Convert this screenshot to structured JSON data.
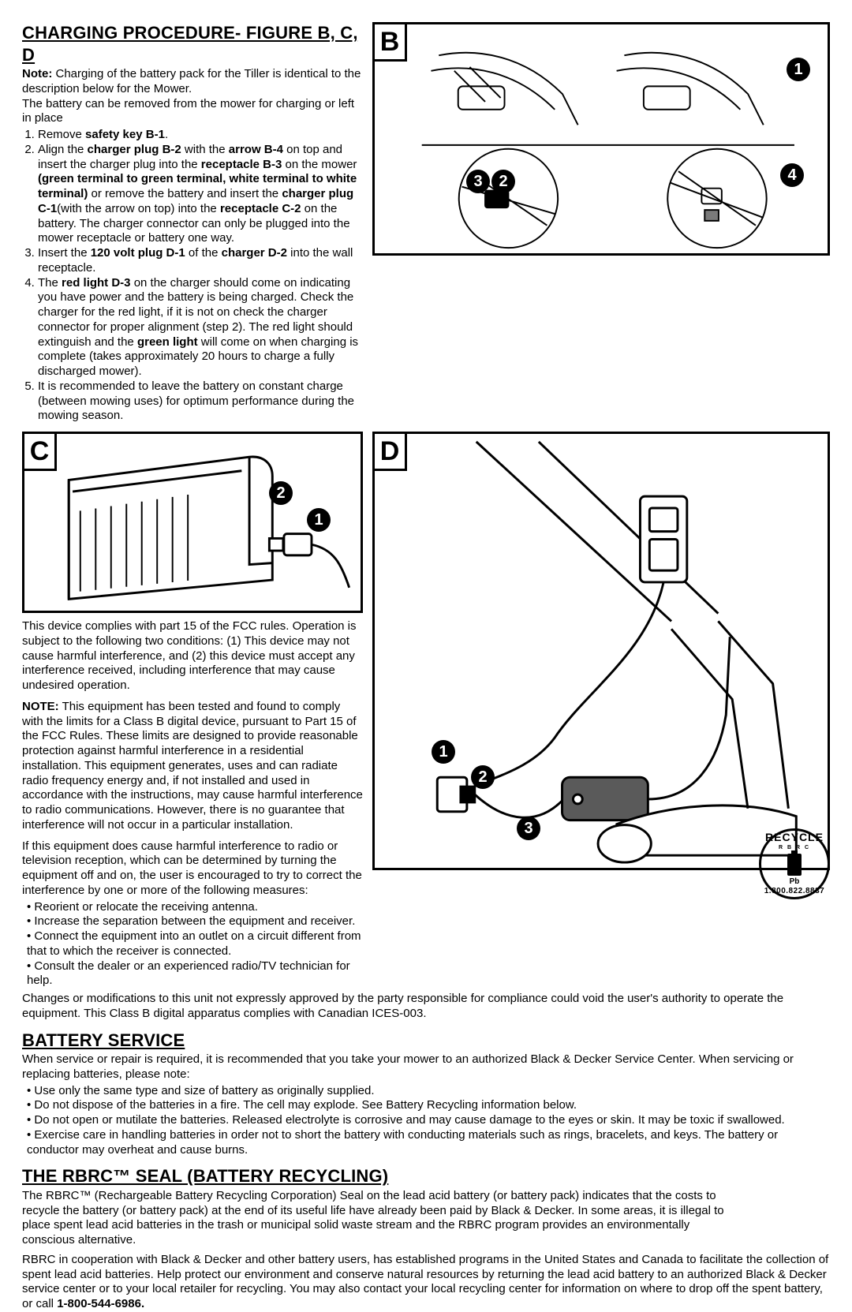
{
  "charging": {
    "title": "CHARGING PROCEDURE- FIGURE B, C, D",
    "note_lead": "Note:",
    "note": " Charging of the battery pack for the Tiller is identical to the description below for the Mower.",
    "intro": "The battery can be removed from the mower for charging or left in place",
    "steps_html": [
      "Remove <b>safety key B-1</b>.",
      "Align the <b>charger plug B-2</b> with the <b>arrow B-4</b> on top and insert the charger plug into the <b>receptacle B-3</b> on the mower <b>(green terminal to green terminal, white terminal to white terminal)</b> or remove the battery and insert the <b>charger plug C-1</b>(with the arrow on top) into the <b>receptacle C-2</b> on the battery. The charger connector can only be plugged into the mower receptacle or battery one way.",
      "Insert the <b>120 volt plug D-1</b> of the <b>charger D-2</b> into the wall receptacle.",
      "The <b>red light D-3</b> on the charger should come on indicating you have power and the battery is being charged. Check the charger for the red light, if it is not on check the charger connector for proper alignment (step 2). The red light should extinguish and the <b>green light</b> will come on when charging is complete (takes approximately 20 hours to charge a fully discharged mower).",
      "It is recommended to leave the battery on constant charge (between mowing uses) for optimum performance during the mowing season."
    ]
  },
  "fcc": {
    "p1": "This device complies with part 15 of the FCC rules. Operation is subject to the following two conditions: (1) This device may not cause harmful interference, and (2) this device must accept any interference received, including interference that may cause undesired operation.",
    "p2_lead": "NOTE:",
    "p2": " This equipment has been tested and found to comply with the limits for a Class B digital device, pursuant to Part 15 of the FCC Rules. These limits are designed to provide reasonable protection against harmful interference in a residential installation. This equipment generates, uses and can radiate radio frequency energy and, if not installed and used in accordance with the instructions, may cause harmful interference to radio communications. However, there is no guarantee that interference will not occur in a particular installation.",
    "p3": "If this equipment does cause harmful interference to radio or television reception, which can be determined by turning the equipment off and on, the user is encouraged to try to correct the interference by one or more of the following measures:",
    "bullets": [
      "Reorient or relocate the receiving antenna.",
      "Increase the separation between the equipment and receiver.",
      "Connect the equipment into an outlet on a circuit different from that to which the receiver is connected.",
      "Consult the dealer or an experienced radio/TV technician for help."
    ],
    "p4": "Changes or modifications to this unit not expressly approved by the party responsible for compliance could void the user's authority to operate the equipment. This Class B digital apparatus complies with Canadian ICES-003."
  },
  "battery_service": {
    "title": "BATTERY SERVICE",
    "p1": "When service or repair is required, it is recommended that you take your mower to an authorized Black & Decker Service Center. When servicing or replacing batteries, please note:",
    "bullets": [
      "Use only the same type and size of battery as originally supplied.",
      "Do not dispose of the batteries in a fire. The cell may explode. See Battery Recycling information below.",
      "Do not open or mutilate the batteries. Released electrolyte is corrosive and may cause damage to the eyes or skin. It may be toxic if swallowed.",
      "Exercise care in handling batteries in order not to short the battery with conducting materials such as rings, bracelets, and keys. The battery or conductor may overheat and cause burns."
    ]
  },
  "rbrc": {
    "title": "THE RBRC™ SEAL (BATTERY RECYCLING)",
    "p1": "The RBRC™ (Rechargeable Battery Recycling Corporation) Seal on the lead acid battery (or battery pack) indicates that the costs to recycle the battery (or battery pack) at the end of its useful life have already been paid by Black & Decker. In some areas, it is illegal to place spent lead acid batteries in the trash or municipal solid waste stream and the RBRC program provides an environmentally conscious alternative.",
    "p2_html": "RBRC in cooperation with Black & Decker and other battery users, has established programs in the United States and Canada to facilitate the collection of spent lead acid batteries. Help protect our environment and conserve natural resources by returning the lead acid battery to an authorized Black & Decker service center or to your local retailer for recycling. You may also contact your local recycling center for information on where to drop off the spent battery, or call <b>1-800-544-6986.</b>",
    "seal": {
      "top": "RECYCLE",
      "mid": "R B R C",
      "pb": "Pb",
      "bot": "1.800.822.8837"
    }
  },
  "figures": {
    "B": {
      "label": "B",
      "callouts": [
        "1",
        "2",
        "3",
        "4"
      ]
    },
    "C": {
      "label": "C",
      "callouts": [
        "1",
        "2"
      ]
    },
    "D": {
      "label": "D",
      "callouts": [
        "1",
        "2",
        "3"
      ]
    }
  },
  "colors": {
    "ink": "#000000",
    "bg": "#ffffff"
  }
}
